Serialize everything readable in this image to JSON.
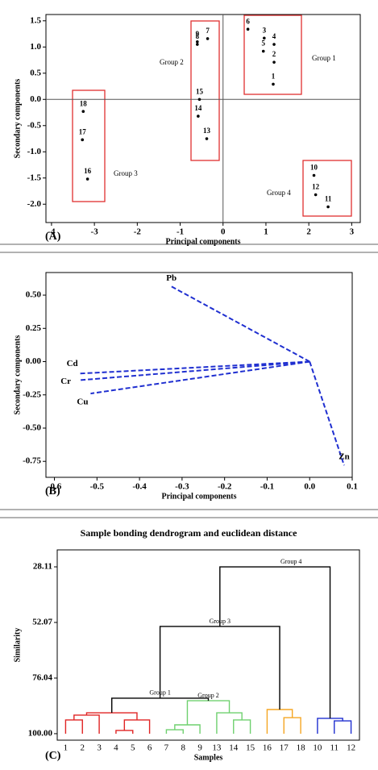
{
  "chart_data": [
    {
      "type": "scatter",
      "panel_label": "(A)",
      "xlabel": "Principal components",
      "ylabel": "Secondary components",
      "labels": [
        "1",
        "2",
        "3",
        "4",
        "5",
        "6",
        "7",
        "8",
        "9",
        "10",
        "11",
        "12",
        "13",
        "14",
        "15",
        "16",
        "17",
        "18"
      ],
      "x": [
        1.17,
        1.19,
        0.96,
        1.19,
        0.94,
        0.58,
        -0.36,
        -0.6,
        -0.6,
        2.12,
        2.45,
        2.16,
        -0.38,
        -0.58,
        -0.55,
        -3.16,
        -3.28,
        -3.26
      ],
      "y": [
        0.29,
        0.71,
        1.17,
        1.05,
        0.92,
        1.34,
        1.16,
        1.05,
        1.1,
        -1.45,
        -2.05,
        -1.82,
        -0.75,
        -0.32,
        0.0,
        -1.52,
        -0.77,
        -0.23
      ],
      "color": "#000000",
      "zero_lines": true,
      "annotations": [
        "Group 1",
        "Group 2",
        "Group 3",
        "Group 4"
      ],
      "xlim": [
        -4.13,
        3.2
      ],
      "ylim": [
        -2.35,
        1.62
      ],
      "xticks": [
        -4,
        -3,
        -2,
        -1,
        0,
        1,
        2,
        3
      ],
      "yticks": [
        {
          "value": -2,
          "label": "-2.0"
        },
        -1.5,
        {
          "value": -1,
          "label": "-1.0"
        },
        -0.5,
        {
          "value": 0,
          "label": "0.0"
        },
        0.5,
        {
          "value": 1,
          "label": "1.0"
        },
        1.5
      ]
    },
    {
      "type": "biplot",
      "panel_label": "(B)",
      "xlabel": "Principal components",
      "ylabel": "Secondary components",
      "color": "#1f2fd0",
      "series": [
        {
          "name": "Pb",
          "x": -0.325,
          "y": 0.565
        },
        {
          "name": "Cd",
          "x": -0.543,
          "y": -0.09
        },
        {
          "name": "Cr",
          "x": -0.543,
          "y": -0.14
        },
        {
          "name": "Cu",
          "x": -0.515,
          "y": -0.24
        },
        {
          "name": "Zn",
          "x": 0.081,
          "y": -0.78
        }
      ],
      "xlim": [
        -0.62,
        0.1
      ],
      "ylim": [
        -0.87,
        0.67
      ],
      "xticks": [
        -0.6,
        -0.5,
        -0.4,
        -0.3,
        -0.2,
        -0.1,
        {
          "value": 0,
          "label": "0.0"
        },
        0.1
      ],
      "yticks": [
        {
          "value": 0.5,
          "label": "0.50"
        },
        0.25,
        {
          "value": 0,
          "label": "0.00"
        },
        -0.25,
        {
          "value": -0.5,
          "label": "-0.50"
        },
        -0.75
      ]
    },
    {
      "type": "dendrogram",
      "panel_label": "(C)",
      "title": "Sample bonding dendrogram and euclidean distance",
      "xlabel": "Samples",
      "ylabel": "Similarity",
      "categories": [
        "1",
        "2",
        "3",
        "4",
        "5",
        "6",
        "7",
        "8",
        "9",
        "13",
        "14",
        "15",
        "16",
        "17",
        "18",
        "10",
        "11",
        "12"
      ],
      "merges": [
        {
          "left": 0,
          "right": 1,
          "height": 94.1,
          "color": "#e02424"
        },
        {
          "left": 18,
          "right": 2,
          "height": 92.0,
          "color": "#e02424"
        },
        {
          "left": 3,
          "right": 4,
          "height": 98.6,
          "color": "#e02424"
        },
        {
          "left": 20,
          "right": 5,
          "height": 94.1,
          "color": "#e02424"
        },
        {
          "left": 19,
          "right": 21,
          "height": 91.0,
          "color": "#e02424"
        },
        {
          "left": 6,
          "right": 7,
          "height": 98.3,
          "color": "#6fd06f"
        },
        {
          "left": 23,
          "right": 8,
          "height": 96.2,
          "color": "#6fd06f"
        },
        {
          "left": 10,
          "right": 11,
          "height": 94.1,
          "color": "#6fd06f"
        },
        {
          "left": 9,
          "right": 25,
          "height": 91.0,
          "color": "#6fd06f"
        },
        {
          "left": 24,
          "right": 26,
          "height": 85.8,
          "color": "#6fd06f",
          "label": "Group 2"
        },
        {
          "left": 22,
          "right": 27,
          "height": 84.7,
          "color": "#000000",
          "label": "Group 1"
        },
        {
          "left": 13,
          "right": 14,
          "height": 93.1,
          "color": "#f5a623"
        },
        {
          "left": 12,
          "right": 29,
          "height": 89.6,
          "color": "#f5a623"
        },
        {
          "left": 28,
          "right": 30,
          "height": 53.8,
          "color": "#000000",
          "label": "Group 3"
        },
        {
          "left": 16,
          "right": 17,
          "height": 94.5,
          "color": "#1f2fd0"
        },
        {
          "left": 15,
          "right": 32,
          "height": 93.4,
          "color": "#1f2fd0"
        },
        {
          "left": 31,
          "right": 33,
          "height": 28.11,
          "color": "#000000",
          "label": "Group 4"
        }
      ],
      "ylim": [
        102.8,
        20.8
      ],
      "yticks": [
        28.11,
        52.07,
        76.04,
        {
          "value": 100,
          "label": "100.00"
        }
      ]
    }
  ]
}
